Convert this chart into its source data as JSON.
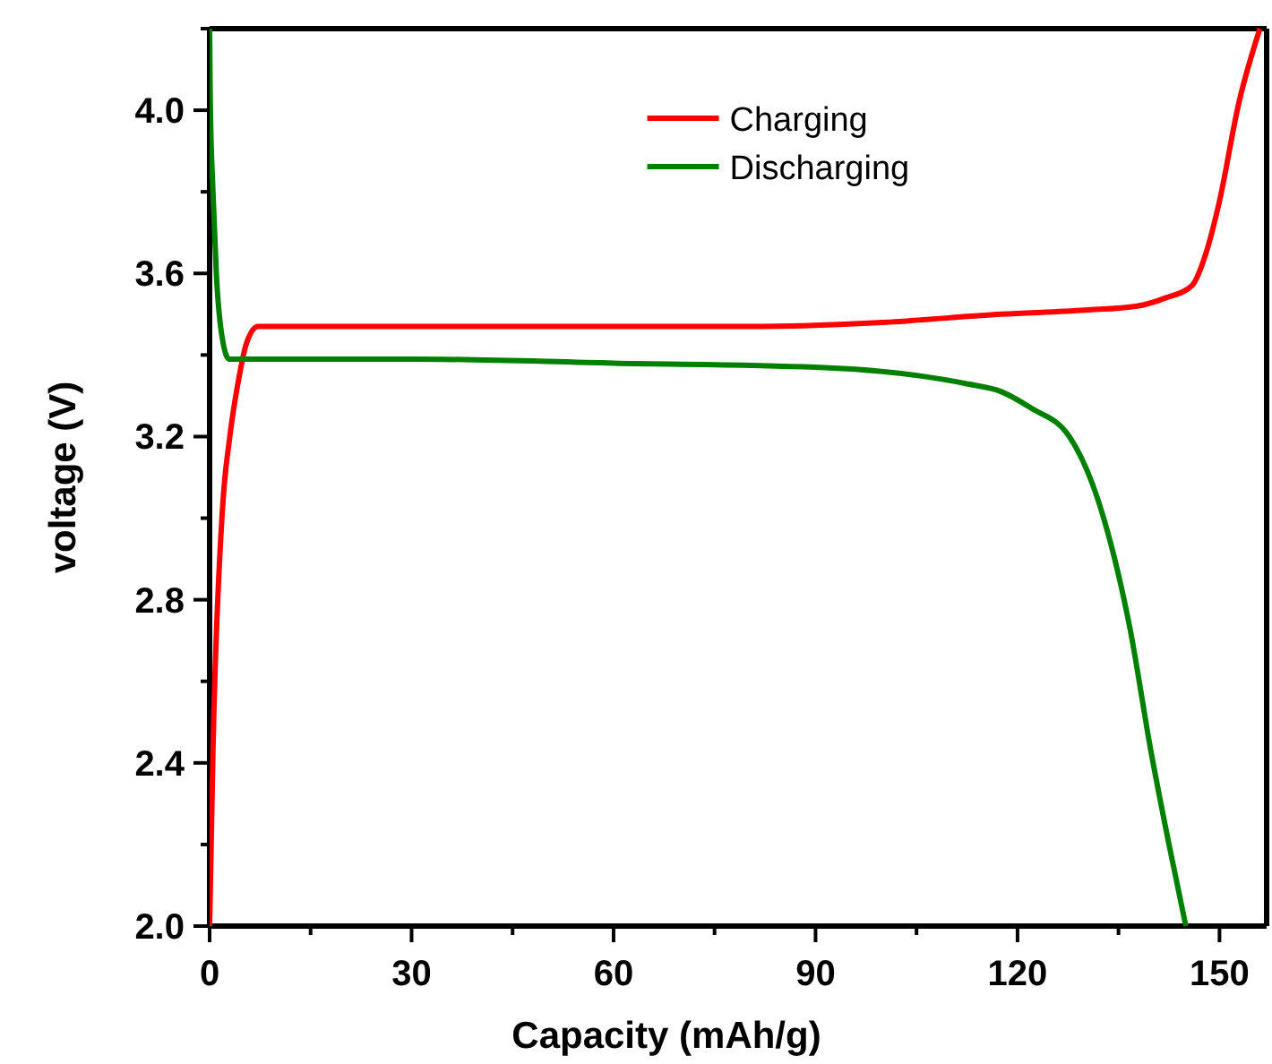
{
  "chart_data": {
    "type": "line",
    "xlabel": "Capacity (mAh/g)",
    "ylabel": "voltage (V)",
    "xlim": [
      0,
      157
    ],
    "ylim": [
      2.0,
      4.2
    ],
    "xticks": [
      0,
      {
        "value": 15,
        "label": null
      },
      30,
      {
        "value": 45,
        "label": null
      },
      60,
      {
        "value": 75,
        "label": null
      },
      90,
      {
        "value": 105,
        "label": null
      },
      120,
      {
        "value": 135,
        "label": null
      },
      150
    ],
    "yticks": [
      "2.0",
      {
        "value": 2.2,
        "label": null
      },
      2.4,
      {
        "value": 2.6,
        "label": null
      },
      2.8,
      {
        "value": 3.0,
        "label": null
      },
      3.2,
      {
        "value": 3.4,
        "label": null
      },
      3.6,
      {
        "value": 3.8,
        "label": null
      },
      "4.0",
      {
        "value": 4.2,
        "label": null
      }
    ],
    "legend": "top",
    "line_style": "solid",
    "marker": "none",
    "grid": false,
    "series": [
      {
        "name": "Charging",
        "color": "#ff0000",
        "x": [
          0,
          0.5,
          1.9,
          3,
          4.2,
          5.5,
          7.2,
          20,
          40,
          60,
          80,
          100,
          117.6,
          130,
          137.8,
          142,
          145.9,
          148,
          149.9,
          152.9,
          156
        ],
        "values": [
          2.0,
          2.43,
          3.02,
          3.2,
          3.33,
          3.43,
          3.47,
          3.47,
          3.47,
          3.47,
          3.47,
          3.48,
          3.5,
          3.51,
          3.52,
          3.54,
          3.57,
          3.65,
          3.77,
          4.02,
          4.2
        ]
      },
      {
        "name": "Discharging",
        "color": "#008000",
        "x": [
          0,
          0.1,
          0.5,
          1.0,
          2.0,
          2.9,
          10,
          30,
          60,
          90,
          105,
          112.3,
          117.6,
          122,
          127.7,
          132.8,
          136.7,
          139.8,
          142.5,
          145
        ],
        "values": [
          4.2,
          4.02,
          3.8,
          3.6,
          3.43,
          3.39,
          3.39,
          3.39,
          3.38,
          3.37,
          3.35,
          3.33,
          3.31,
          3.27,
          3.2,
          3.0,
          2.73,
          2.43,
          2.2,
          2.0
        ]
      }
    ]
  }
}
